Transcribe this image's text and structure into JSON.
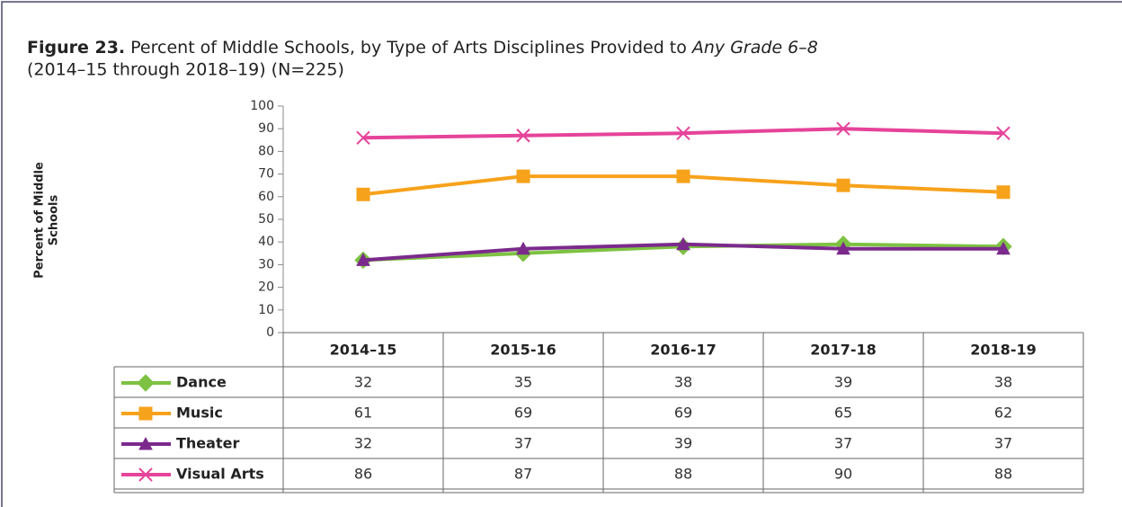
{
  "chart_data": {
    "type": "line",
    "title_prefix": "Figure 23.",
    "title": "Percent of Middle Schools, by Type of Arts Disciplines Provided to",
    "title_emphasis": "Any Grade 6–8",
    "subtitle": "(2014–15 through 2018–19) (N=225)",
    "y_label": [
      "Percent of Middle",
      "Schools"
    ],
    "categories": [
      "2014–15",
      "2015-16",
      "2016-17",
      "2017-18",
      "2018-19"
    ],
    "series": [
      {
        "name": "Dance",
        "color": "#7dc242",
        "marker": "diamond",
        "values": [
          32,
          35,
          38,
          39,
          38
        ]
      },
      {
        "name": "Music",
        "color": "#f7a21b",
        "marker": "square",
        "values": [
          61,
          69,
          69,
          65,
          62
        ]
      },
      {
        "name": "Theater",
        "color": "#7b2a8c",
        "marker": "triangle",
        "values": [
          32,
          37,
          39,
          37,
          37
        ]
      },
      {
        "name": "Visual Arts",
        "color": "#e6439a",
        "marker": "x",
        "values": [
          86,
          87,
          88,
          90,
          88
        ]
      }
    ],
    "ylim": [
      0,
      100
    ],
    "yticks": [
      0,
      10,
      20,
      30,
      40,
      50,
      60,
      70,
      80,
      90,
      100
    ],
    "grid": false
  }
}
